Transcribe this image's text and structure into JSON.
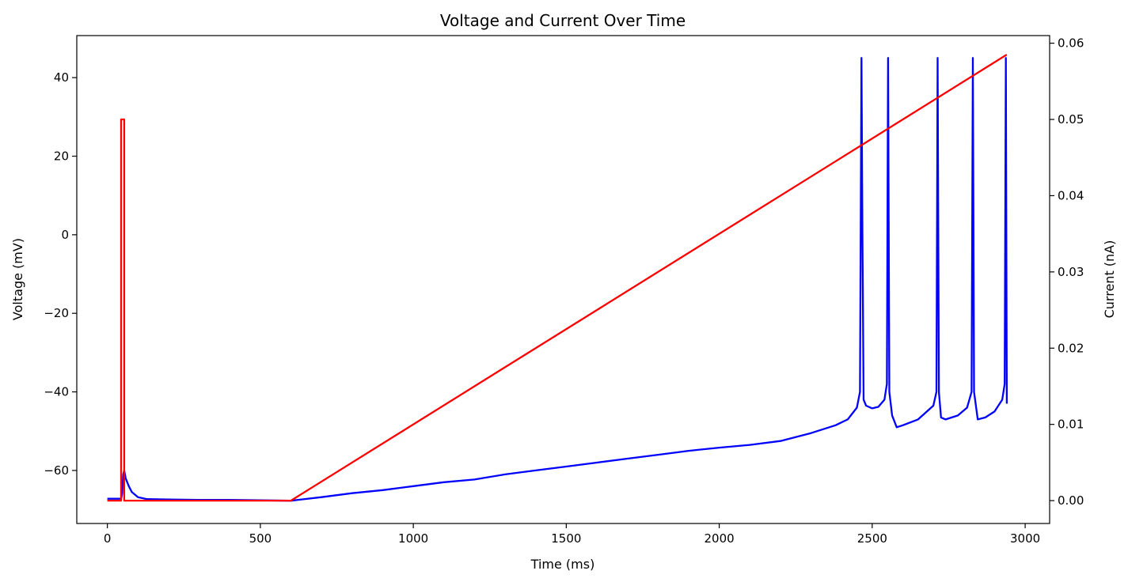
{
  "chart_data": {
    "type": "line",
    "title": "Voltage and Current Over Time",
    "xlabel": "Time (ms)",
    "ylabel_left": "Voltage (mV)",
    "ylabel_right": "Current (nA)",
    "xlim": [
      -100,
      3080
    ],
    "ylim_left": [
      -73.5,
      50.7
    ],
    "ylim_right": [
      -0.003,
      0.061
    ],
    "x_ticks": [
      0,
      500,
      1000,
      1500,
      2000,
      2500,
      3000
    ],
    "y_ticks_left": [
      -60,
      -40,
      -20,
      0,
      20,
      40
    ],
    "y_ticks_right": [
      0.0,
      0.01,
      0.02,
      0.03,
      0.04,
      0.05,
      0.06
    ],
    "x_tick_labels": [
      "0",
      "500",
      "1000",
      "1500",
      "2000",
      "2500",
      "3000"
    ],
    "y_tick_labels_left": [
      "−60",
      "−40",
      "−20",
      "0",
      "20",
      "40"
    ],
    "y_tick_labels_right": [
      "0.00",
      "0.01",
      "0.02",
      "0.03",
      "0.04",
      "0.05",
      "0.06"
    ],
    "grid": false,
    "series": [
      {
        "axis": "left",
        "color": "#0000ff",
        "x": [
          0,
          45,
          48,
          52,
          55,
          60,
          70,
          80,
          100,
          130,
          200,
          300,
          400,
          500,
          600,
          700,
          800,
          900,
          1000,
          1100,
          1200,
          1300,
          1400,
          1500,
          1600,
          1700,
          1800,
          1900,
          2000,
          2100,
          2200,
          2300,
          2380,
          2420,
          2450,
          2460,
          2465,
          2468,
          2472,
          2480,
          2500,
          2520,
          2540,
          2548,
          2552,
          2556,
          2565,
          2580,
          2600,
          2650,
          2700,
          2710,
          2714,
          2718,
          2725,
          2740,
          2780,
          2810,
          2825,
          2829,
          2833,
          2845,
          2870,
          2900,
          2925,
          2933,
          2937,
          2940
        ],
        "y": [
          -67.2,
          -67.2,
          -66,
          -61,
          -60,
          -62,
          -64,
          -65.5,
          -66.8,
          -67.3,
          -67.4,
          -67.5,
          -67.5,
          -67.6,
          -67.7,
          -66.8,
          -65.8,
          -65,
          -64,
          -63,
          -62.3,
          -61,
          -60,
          -59,
          -58,
          -57,
          -56,
          -55,
          -54.2,
          -53.5,
          -52.5,
          -50.5,
          -48.5,
          -47,
          -44,
          -40,
          45,
          0,
          -42,
          -43.5,
          -44.2,
          -43.8,
          -42,
          -38,
          45,
          -40,
          -46,
          -49,
          -48.5,
          -47,
          -43.5,
          -40,
          45,
          -40,
          -46.5,
          -47,
          -46,
          -44,
          -40,
          45,
          -40,
          -47,
          -46.5,
          -45,
          -42,
          -38,
          45,
          -43
        ]
      },
      {
        "axis": "right",
        "color": "#ff0000",
        "x": [
          0,
          45,
          45,
          55,
          55,
          600,
          2940
        ],
        "y": [
          0,
          0,
          0.05,
          0.05,
          0,
          0,
          0.0585
        ]
      }
    ]
  }
}
